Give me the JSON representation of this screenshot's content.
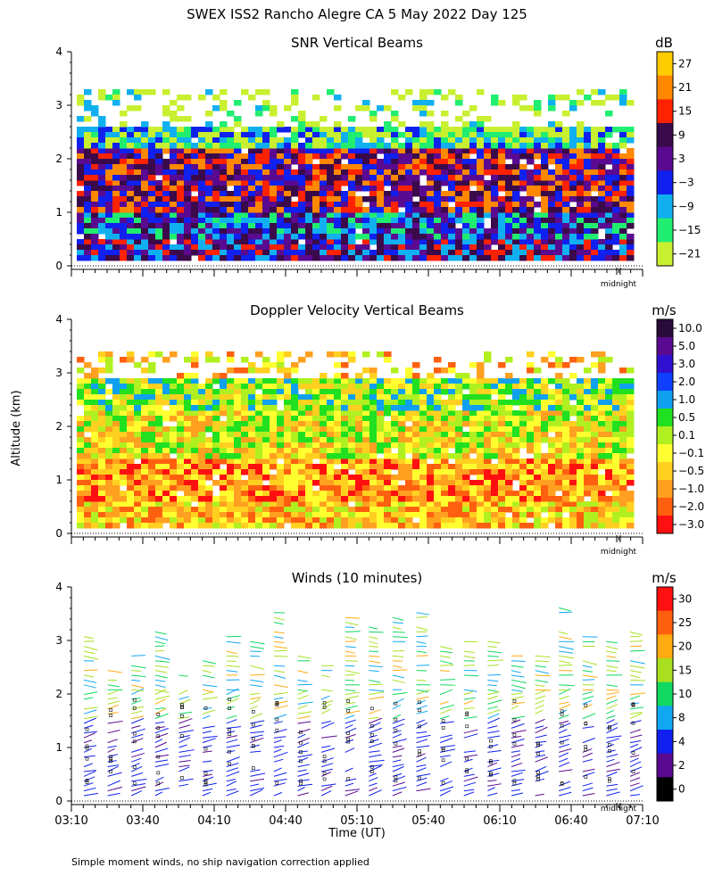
{
  "figure": {
    "title": "SWEX ISS2 Rancho Alegre CA   5 May 2022 Day 125",
    "ylabel": "Altitude (km)",
    "xlabel": "Time (UT)",
    "footnote": "Simple moment winds, no ship navigation correction applied",
    "midnight_label": "midnight"
  },
  "chart_data": [
    {
      "type": "heatmap",
      "title": "SNR Vertical Beams",
      "unit": "dB",
      "xlim": [
        "03:10",
        "07:10"
      ],
      "ylim": [
        0,
        4
      ],
      "yticks": [
        "0",
        "1",
        "2",
        "3",
        "4"
      ],
      "colorbar": {
        "labels": [
          "27",
          "21",
          "15",
          "9",
          "3",
          "−3",
          "−9",
          "−15",
          "−21"
        ],
        "colors": [
          "#ffcc00",
          "#ff8800",
          "#ff2200",
          "#3a0a4a",
          "#5a0a90",
          "#1020ee",
          "#10b0f0",
          "#20ee70",
          "#c8f030"
        ]
      },
      "rows": [
        {
          "alt": [
            0.15,
            0.5
          ],
          "value": 3
        },
        {
          "alt": [
            0.5,
            1.0
          ],
          "value": -3
        },
        {
          "alt": [
            1.0,
            1.6
          ],
          "value": 9
        },
        {
          "alt": [
            1.6,
            2.2
          ],
          "value": 9
        },
        {
          "alt": [
            2.2,
            2.6
          ],
          "value": -15
        },
        {
          "alt": [
            2.6,
            3.3
          ],
          "value": -21
        }
      ]
    },
    {
      "type": "heatmap",
      "title": "Doppler Velocity Vertical Beams",
      "unit": "m/s",
      "xlim": [
        "03:10",
        "07:10"
      ],
      "ylim": [
        0,
        4
      ],
      "yticks": [
        "0",
        "1",
        "2",
        "3",
        "4"
      ],
      "colorbar": {
        "labels": [
          "10.0",
          "5.0",
          "3.0",
          "2.0",
          "1.0",
          "0.5",
          "0.1",
          "−0.1",
          "−0.5",
          "−1.0",
          "−2.0",
          "−3.0"
        ],
        "colors": [
          "#2a0a3a",
          "#5a0a90",
          "#3010d0",
          "#1040ff",
          "#10a0f0",
          "#20e020",
          "#b0f020",
          "#ffff30",
          "#ffd020",
          "#ffa020",
          "#ff6010",
          "#ff1010"
        ]
      },
      "rows": [
        {
          "alt": [
            0.15,
            0.6
          ],
          "value": -0.5
        },
        {
          "alt": [
            0.6,
            1.4
          ],
          "value": -1.0
        },
        {
          "alt": [
            1.4,
            2.3
          ],
          "value": -0.1
        },
        {
          "alt": [
            2.3,
            2.9
          ],
          "value": 0.1
        },
        {
          "alt": [
            2.9,
            3.4
          ],
          "value": -0.5
        }
      ]
    },
    {
      "type": "scatter",
      "title": "Winds (10 minutes)",
      "unit": "m/s",
      "xlim": [
        "03:10",
        "07:10"
      ],
      "ylim": [
        0,
        4
      ],
      "yticks": [
        "0",
        "1",
        "2",
        "3",
        "4"
      ],
      "xticks": [
        "03:10",
        "03:40",
        "04:10",
        "04:40",
        "05:10",
        "05:40",
        "06:10",
        "06:40",
        "07:10"
      ],
      "colorbar": {
        "labels": [
          "30",
          "25",
          "20",
          "15",
          "10",
          "8",
          "4",
          "2",
          "0"
        ],
        "colors": [
          "#ff1010",
          "#ff6010",
          "#ffaa10",
          "#a8e020",
          "#10d860",
          "#10a8f0",
          "#1020ee",
          "#5a0a90",
          "#000000"
        ]
      }
    }
  ]
}
